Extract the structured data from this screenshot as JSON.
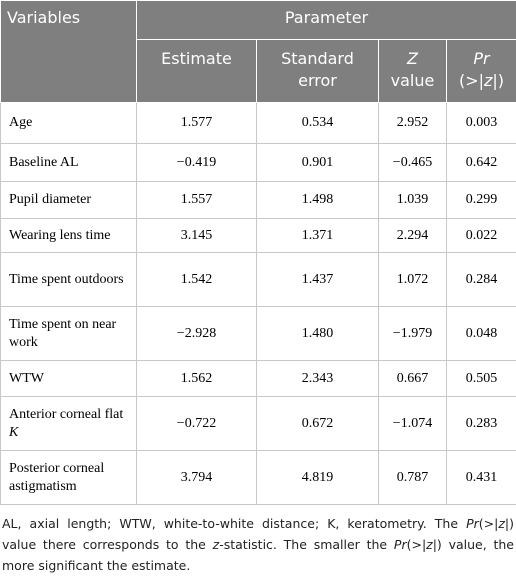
{
  "table": {
    "header": {
      "first": "Variables",
      "group": "Parameter",
      "columns": [
        [
          {
            "text": "Estimate"
          }
        ],
        [
          {
            "text": "Standard error"
          }
        ],
        [
          {
            "text": "Z",
            "italic": true
          },
          {
            "text": " value"
          }
        ],
        [
          {
            "text": "Pr",
            "italic": true
          },
          {
            "text": " (>|"
          },
          {
            "text": "z",
            "italic": true
          },
          {
            "text": "|)"
          }
        ]
      ]
    },
    "rows": [
      [
        "Age",
        "1.577",
        "0.534",
        "2.952",
        "0.003"
      ],
      [
        "Baseline AL",
        "−0.419",
        "0.901",
        "−0.465",
        "0.642"
      ],
      [
        "Pupil diameter",
        "1.557",
        "1.498",
        "1.039",
        "0.299"
      ],
      [
        "Wearing lens time",
        "3.145",
        "1.371",
        "2.294",
        "0.022"
      ],
      [
        "Time spent outdoors",
        "1.542",
        "1.437",
        "1.072",
        "0.284"
      ],
      [
        "Time spent on near work",
        "−2.928",
        "1.480",
        "−1.979",
        "0.048"
      ],
      [
        "WTW",
        "1.562",
        "2.343",
        "0.667",
        "0.505"
      ],
      [
        [
          {
            "text": "Anterior corneal flat "
          },
          {
            "text": "K",
            "italic": true
          }
        ],
        "−0.722",
        "0.672",
        "−1.074",
        "0.283"
      ],
      [
        "Posterior corneal astigmatism",
        "3.794",
        "4.819",
        "0.787",
        "0.431"
      ]
    ]
  },
  "footnote": [
    {
      "text": "AL, axial length; WTW, white-to-white distance; K, keratometry. The "
    },
    {
      "text": "Pr",
      "italic": true
    },
    {
      "text": "(>|"
    },
    {
      "text": "z",
      "italic": true
    },
    {
      "text": "|) value there corresponds to the "
    },
    {
      "text": "z",
      "italic": true
    },
    {
      "text": "-statistic. The smaller the "
    },
    {
      "text": "Pr",
      "italic": true
    },
    {
      "text": "(>|"
    },
    {
      "text": "z",
      "italic": true
    },
    {
      "text": "|) value, the more significant the estimate."
    }
  ]
}
